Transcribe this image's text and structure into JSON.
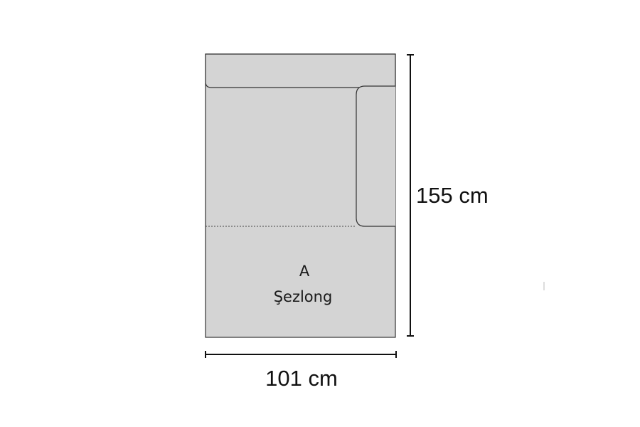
{
  "module": {
    "code": "A",
    "name": "Şezlong"
  },
  "dimensions": {
    "width_label": "101 cm",
    "height_label": "155 cm"
  },
  "colors": {
    "fill": "#d4d4d4",
    "stroke": "#333333",
    "dimension_line": "#111111",
    "background": "#ffffff"
  }
}
